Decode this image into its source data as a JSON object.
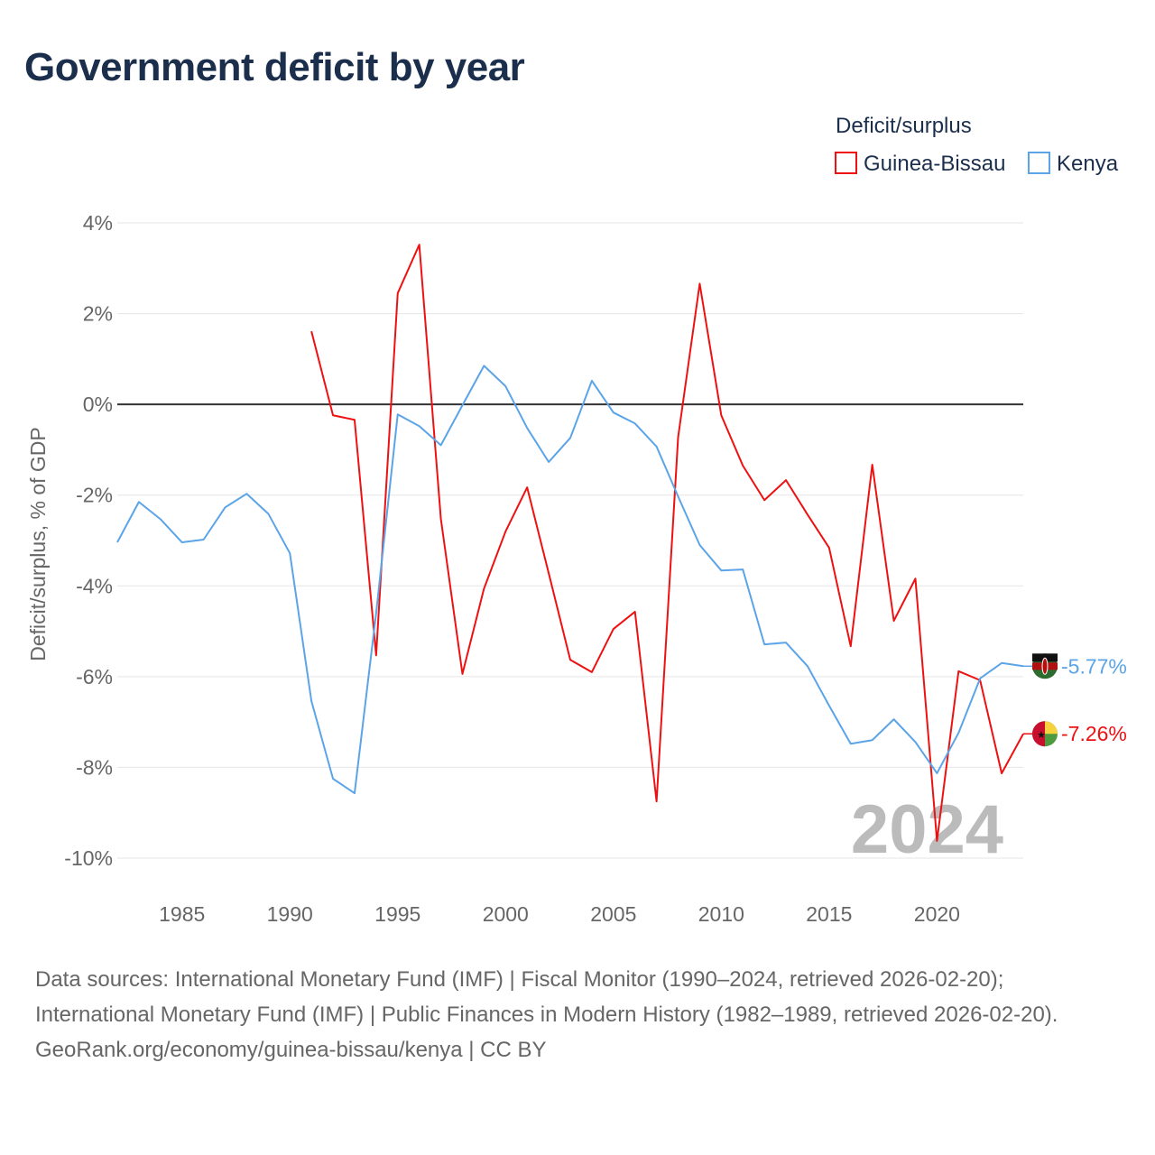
{
  "title": "Government deficit by year",
  "legend": {
    "title": "Deficit/surplus"
  },
  "watermark_year": "2024",
  "sources_line1": "Data sources: International Monetary Fund (IMF) | Fiscal Monitor (1990–2024, retrieved 2026-02-20);",
  "sources_line2": "International Monetary Fund (IMF) | Public Finances in Modern History (1982–1989, retrieved 2026-02-20).",
  "credit": "GeoRank.org/economy/guinea-bissau/kenya | CC BY",
  "chart_data": {
    "type": "line",
    "title": "Government deficit by year",
    "xlabel": "",
    "ylabel": "Deficit/surplus, % of GDP",
    "xlim": [
      1982,
      2024
    ],
    "ylim": [
      -10,
      4
    ],
    "yticks": [
      4,
      2,
      0,
      -2,
      -4,
      -6,
      -8,
      -10
    ],
    "ytick_labels": [
      "4%",
      "2%",
      "0%",
      "-2%",
      "-4%",
      "-6%",
      "-8%",
      "-10%"
    ],
    "xticks": [
      1985,
      1990,
      1995,
      2000,
      2005,
      2010,
      2015,
      2020
    ],
    "xtick_labels": [
      "1985",
      "1990",
      "1995",
      "2000",
      "2005",
      "2010",
      "2015",
      "2020"
    ],
    "grid": true,
    "legend_position": "top-right",
    "series": [
      {
        "name": "Guinea-Bissau",
        "color": "#ee1111",
        "end_label": "-7.26%",
        "x": [
          1991,
          1992,
          1993,
          1994,
          1995,
          1996,
          1997,
          1998,
          1999,
          2000,
          2001,
          2002,
          2003,
          2004,
          2005,
          2006,
          2007,
          2008,
          2009,
          2010,
          2011,
          2012,
          2013,
          2014,
          2015,
          2016,
          2017,
          2018,
          2019,
          2020,
          2021,
          2022,
          2023,
          2024
        ],
        "values": [
          1.61,
          -0.24,
          -0.34,
          -5.53,
          2.45,
          3.52,
          -2.52,
          -5.94,
          -4.06,
          -2.8,
          -1.83,
          -3.72,
          -5.63,
          -5.9,
          -4.95,
          -4.57,
          -8.75,
          -0.72,
          2.66,
          -0.24,
          -1.35,
          -2.11,
          -1.67,
          -2.43,
          -3.16,
          -5.33,
          -1.33,
          -4.77,
          -3.84,
          -9.62,
          -5.88,
          -6.08,
          -8.13,
          -7.26
        ]
      },
      {
        "name": "Kenya",
        "color": "#5ba4e8",
        "end_label": "-5.77%",
        "x": [
          1982,
          1983,
          1984,
          1985,
          1986,
          1987,
          1988,
          1989,
          1990,
          1991,
          1992,
          1993,
          1994,
          1995,
          1996,
          1997,
          1998,
          1999,
          2000,
          2001,
          2002,
          2003,
          2004,
          2005,
          2006,
          2007,
          2008,
          2009,
          2010,
          2011,
          2012,
          2013,
          2014,
          2015,
          2016,
          2017,
          2018,
          2019,
          2020,
          2021,
          2022,
          2023,
          2024
        ],
        "values": [
          -3.04,
          -2.15,
          -2.53,
          -3.04,
          -2.98,
          -2.27,
          -1.97,
          -2.41,
          -3.28,
          -6.54,
          -8.25,
          -8.57,
          -4.6,
          -0.22,
          -0.48,
          -0.9,
          -0.02,
          0.85,
          0.4,
          -0.52,
          -1.27,
          -0.74,
          0.52,
          -0.18,
          -0.42,
          -0.93,
          -2.03,
          -3.1,
          -3.66,
          -3.64,
          -5.29,
          -5.25,
          -5.77,
          -6.64,
          -7.48,
          -7.4,
          -6.94,
          -7.44,
          -8.13,
          -7.24,
          -6.04,
          -5.7,
          -5.77
        ]
      }
    ]
  }
}
